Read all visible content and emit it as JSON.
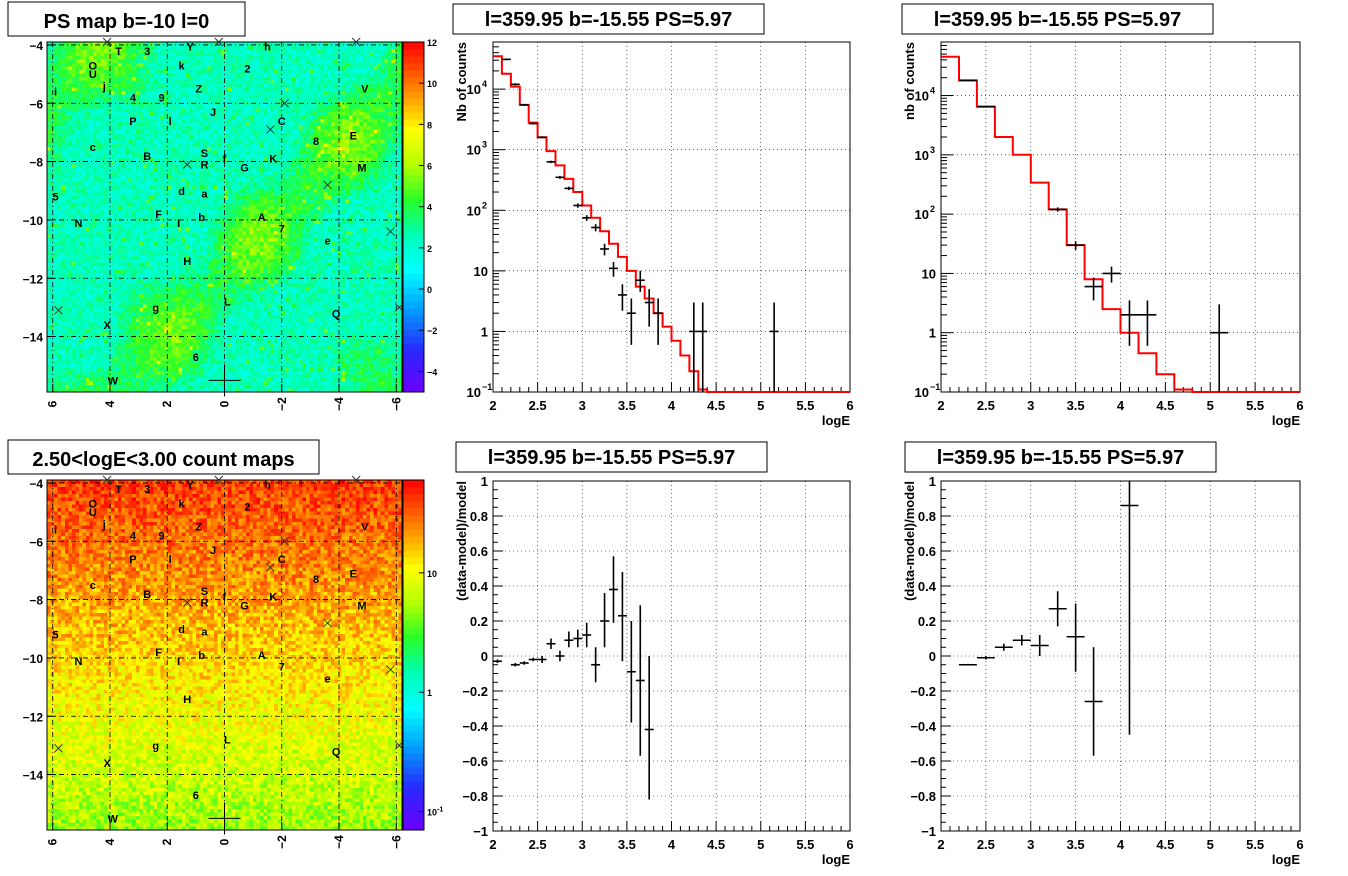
{
  "chart_data": [
    {
      "type": "heatmap",
      "title": "PS map b=-10 l=0",
      "xlim": [
        6.2,
        -6.2
      ],
      "ylim": [
        -15.9,
        -3.9
      ],
      "xticks": [
        6,
        4,
        2,
        0,
        -2,
        -4,
        -6
      ],
      "yticks": [
        -4,
        -6,
        -8,
        -10,
        -12,
        -14
      ],
      "colorbar": {
        "min": -5,
        "max": 12,
        "ticks": [
          12,
          10,
          8,
          6,
          4,
          2,
          0,
          -2,
          -4
        ],
        "scale": "linear"
      },
      "field_level": "cyan (~0-2) with green patches (~3-5)",
      "grid": true,
      "source_labels": [
        {
          "t": "T",
          "l": 3.7,
          "b": -4.2
        },
        {
          "t": "3",
          "l": 2.7,
          "b": -4.2
        },
        {
          "t": "Y",
          "l": 1.2,
          "b": -4.05
        },
        {
          "t": "h",
          "l": -1.5,
          "b": -4.05
        },
        {
          "t": "O",
          "l": 4.6,
          "b": -4.7
        },
        {
          "t": "U",
          "l": 4.6,
          "b": -5.0
        },
        {
          "t": "k",
          "l": 1.5,
          "b": -4.7
        },
        {
          "t": "2",
          "l": -0.8,
          "b": -4.8
        },
        {
          "t": "i",
          "l": 5.9,
          "b": -5.6
        },
        {
          "t": "j",
          "l": 4.2,
          "b": -5.4
        },
        {
          "t": "4",
          "l": 3.2,
          "b": -5.8
        },
        {
          "t": "9",
          "l": 2.2,
          "b": -5.8
        },
        {
          "t": "Z",
          "l": 0.9,
          "b": -5.5
        },
        {
          "t": "V",
          "l": -4.9,
          "b": -5.5
        },
        {
          "t": "l",
          "l": 1.9,
          "b": -6.6
        },
        {
          "t": "P",
          "l": 3.2,
          "b": -6.6
        },
        {
          "t": "J",
          "l": 0.4,
          "b": -6.3
        },
        {
          "t": "C",
          "l": -2.0,
          "b": -6.6
        },
        {
          "t": "c",
          "l": 4.6,
          "b": -7.5
        },
        {
          "t": "8",
          "l": -3.2,
          "b": -7.3
        },
        {
          "t": "E",
          "l": -4.5,
          "b": -7.1
        },
        {
          "t": "B",
          "l": 2.7,
          "b": -7.8
        },
        {
          "t": "S",
          "l": 0.7,
          "b": -7.7
        },
        {
          "t": "f",
          "l": 0.0,
          "b": -7.9
        },
        {
          "t": "K",
          "l": -1.7,
          "b": -7.9
        },
        {
          "t": "R",
          "l": 0.7,
          "b": -8.1
        },
        {
          "t": "G",
          "l": -0.7,
          "b": -8.2
        },
        {
          "t": "M",
          "l": -4.8,
          "b": -8.2
        },
        {
          "t": "d",
          "l": 1.5,
          "b": -9.0
        },
        {
          "t": "a",
          "l": 0.7,
          "b": -9.1
        },
        {
          "t": "5",
          "l": 5.9,
          "b": -9.2
        },
        {
          "t": "F",
          "l": 2.3,
          "b": -9.8
        },
        {
          "t": "b",
          "l": 0.8,
          "b": -9.9
        },
        {
          "t": "I",
          "l": 1.6,
          "b": -10.1
        },
        {
          "t": "A",
          "l": -1.3,
          "b": -9.9
        },
        {
          "t": "N",
          "l": 5.1,
          "b": -10.1
        },
        {
          "t": "7",
          "l": -2.0,
          "b": -10.3
        },
        {
          "t": "e",
          "l": -3.6,
          "b": -10.7
        },
        {
          "t": "H",
          "l": 1.3,
          "b": -11.4
        },
        {
          "t": "L",
          "l": -0.1,
          "b": -12.8
        },
        {
          "t": "g",
          "l": 2.4,
          "b": -13.0
        },
        {
          "t": "Q",
          "l": -3.9,
          "b": -13.2
        },
        {
          "t": "X",
          "l": 4.1,
          "b": -13.6
        },
        {
          "t": "6",
          "l": 1.0,
          "b": -14.7
        },
        {
          "t": "W",
          "l": 3.9,
          "b": -15.5
        }
      ],
      "cross_markers": [
        {
          "l": 4.1,
          "b": -3.9
        },
        {
          "l": 0.2,
          "b": -3.9
        },
        {
          "l": -4.6,
          "b": -3.9
        },
        {
          "l": -2.1,
          "b": -6.0
        },
        {
          "l": -1.6,
          "b": -6.9
        },
        {
          "l": 1.3,
          "b": -8.1
        },
        {
          "l": -3.6,
          "b": -8.8
        },
        {
          "l": -5.8,
          "b": -10.4
        },
        {
          "l": 5.8,
          "b": -13.1
        },
        {
          "l": -6.1,
          "b": -13.0
        }
      ],
      "crosshair": {
        "l": 0.0,
        "b": -15.5
      }
    },
    {
      "type": "line",
      "title": "l=359.95 b=-15.55 PS=5.97",
      "xlabel": "logE",
      "ylabel": "Nb of counts",
      "xlim": [
        2,
        6
      ],
      "ylim": [
        0.1,
        60000
      ],
      "yscale": "log",
      "xticks": [
        2,
        2.5,
        3,
        3.5,
        4,
        4.5,
        5,
        5.5,
        6
      ],
      "yticks": [
        {
          "v": 0.1,
          "t": "10"
        },
        {
          "v": 1,
          "t": "1"
        },
        {
          "v": 10,
          "t": "10"
        },
        {
          "v": 100,
          "t": "10"
        },
        {
          "v": 1000,
          "t": "10"
        },
        {
          "v": 10000,
          "t": "10"
        }
      ],
      "grid": true,
      "model_color": "#ff0000",
      "model_edges": [
        2,
        2.1,
        2.2,
        2.3,
        2.4,
        2.5,
        2.6,
        2.7,
        2.8,
        2.9,
        3.0,
        3.1,
        3.2,
        3.3,
        3.4,
        3.5,
        3.6,
        3.7,
        3.8,
        3.9,
        4.0,
        4.1,
        4.2,
        4.3,
        4.4,
        4.5,
        4.6,
        4.7,
        4.8,
        4.9,
        5.0,
        5.1,
        5.2,
        5.3,
        5.4,
        5.5,
        5.6,
        5.7,
        5.8,
        5.9,
        6.0
      ],
      "model_values": [
        35000,
        18000,
        11000,
        5500,
        2800,
        1600,
        950,
        550,
        330,
        200,
        120,
        75,
        45,
        28,
        17,
        10,
        5.5,
        3.5,
        2.0,
        1.2,
        0.7,
        0.4,
        0.22,
        0.11,
        0.1,
        0.1,
        0.1,
        0.1,
        0.1,
        0.1,
        0.1,
        0.1,
        0.1,
        0.1,
        0.1,
        0.1,
        0.1,
        0.1,
        0.1,
        0.1
      ],
      "points": [
        {
          "x": 2.15,
          "y": 31000,
          "dx": 0.05,
          "lo": 30000,
          "hi": 32000
        },
        {
          "x": 2.25,
          "y": 12000,
          "dx": 0.05,
          "lo": 11500,
          "hi": 12500
        },
        {
          "x": 2.35,
          "y": 5500,
          "dx": 0.05,
          "lo": 5300,
          "hi": 5700
        },
        {
          "x": 2.45,
          "y": 2700,
          "dx": 0.05,
          "lo": 2600,
          "hi": 2800
        },
        {
          "x": 2.55,
          "y": 1600,
          "dx": 0.05,
          "lo": 1550,
          "hi": 1650
        },
        {
          "x": 2.65,
          "y": 630,
          "dx": 0.05,
          "lo": 600,
          "hi": 660
        },
        {
          "x": 2.75,
          "y": 350,
          "dx": 0.05,
          "lo": 330,
          "hi": 370
        },
        {
          "x": 2.85,
          "y": 230,
          "dx": 0.05,
          "lo": 215,
          "hi": 245
        },
        {
          "x": 2.95,
          "y": 120,
          "dx": 0.05,
          "lo": 110,
          "hi": 130
        },
        {
          "x": 3.05,
          "y": 75,
          "dx": 0.05,
          "lo": 67,
          "hi": 83
        },
        {
          "x": 3.15,
          "y": 52,
          "dx": 0.05,
          "lo": 45,
          "hi": 59
        },
        {
          "x": 3.25,
          "y": 23,
          "dx": 0.05,
          "lo": 18,
          "hi": 28
        },
        {
          "x": 3.35,
          "y": 11,
          "dx": 0.05,
          "lo": 8,
          "hi": 14
        },
        {
          "x": 3.45,
          "y": 4,
          "dx": 0.05,
          "lo": 2.2,
          "hi": 6
        },
        {
          "x": 3.55,
          "y": 2,
          "dx": 0.05,
          "lo": 0.6,
          "hi": 3.5
        },
        {
          "x": 3.65,
          "y": 7,
          "dx": 0.05,
          "lo": 4.5,
          "hi": 10
        },
        {
          "x": 3.75,
          "y": 3,
          "dx": 0.05,
          "lo": 1.2,
          "hi": 5
        },
        {
          "x": 3.85,
          "y": 2,
          "dx": 0.05,
          "lo": 0.6,
          "hi": 3.5
        },
        {
          "x": 4.25,
          "y": 1,
          "dx": 0.05,
          "lo": 0.1,
          "hi": 3
        },
        {
          "x": 4.35,
          "y": 1,
          "dx": 0.05,
          "lo": 0.1,
          "hi": 3
        },
        {
          "x": 5.15,
          "y": 1,
          "dx": 0.05,
          "lo": 0.1,
          "hi": 3
        }
      ]
    },
    {
      "type": "line",
      "title": "l=359.95 b=-15.55 PS=5.97",
      "xlabel": "logE",
      "ylabel": "nb of counts",
      "xlim": [
        2,
        6
      ],
      "ylim": [
        0.1,
        80000
      ],
      "yscale": "log",
      "xticks": [
        2,
        2.5,
        3,
        3.5,
        4,
        4.5,
        5,
        5.5,
        6
      ],
      "yticks": [
        {
          "v": 0.1,
          "t": "10"
        },
        {
          "v": 1,
          "t": "1"
        },
        {
          "v": 10,
          "t": "10"
        },
        {
          "v": 100,
          "t": "10"
        },
        {
          "v": 1000,
          "t": "10"
        },
        {
          "v": 10000,
          "t": "10"
        }
      ],
      "grid": true,
      "model_color": "#ff0000",
      "model_edges": [
        2,
        2.2,
        2.4,
        2.6,
        2.8,
        3.0,
        3.2,
        3.4,
        3.6,
        3.8,
        4.0,
        4.2,
        4.4,
        4.6,
        4.8,
        5.0,
        5.2,
        5.4,
        5.6,
        5.8,
        6.0
      ],
      "model_values": [
        45000,
        18000,
        6500,
        2000,
        1000,
        340,
        120,
        30,
        8,
        2.5,
        1.0,
        0.45,
        0.2,
        0.11,
        0.1,
        0.1,
        0.1,
        0.1,
        0.1,
        0.1
      ],
      "points": [
        {
          "x": 2.3,
          "y": 18000,
          "dx": 0.1,
          "lo": 17500,
          "hi": 18500
        },
        {
          "x": 2.5,
          "y": 6500,
          "dx": 0.1,
          "lo": 6300,
          "hi": 6700
        },
        {
          "x": 3.3,
          "y": 120,
          "dx": 0.1,
          "lo": 110,
          "hi": 130
        },
        {
          "x": 3.5,
          "y": 30,
          "dx": 0.1,
          "lo": 25,
          "hi": 35
        },
        {
          "x": 3.7,
          "y": 6,
          "dx": 0.1,
          "lo": 3.5,
          "hi": 8.5
        },
        {
          "x": 3.9,
          "y": 10,
          "dx": 0.1,
          "lo": 7,
          "hi": 13
        },
        {
          "x": 4.1,
          "y": 2,
          "dx": 0.1,
          "lo": 0.6,
          "hi": 3.5
        },
        {
          "x": 4.3,
          "y": 2,
          "dx": 0.1,
          "lo": 0.6,
          "hi": 3.5
        },
        {
          "x": 5.1,
          "y": 1,
          "dx": 0.1,
          "lo": 0.1,
          "hi": 3
        }
      ]
    },
    {
      "type": "heatmap",
      "title": "2.50<logE<3.00 count maps",
      "xlim": [
        6.2,
        -6.2
      ],
      "ylim": [
        -15.9,
        -3.9
      ],
      "xticks": [
        6,
        4,
        2,
        0,
        -2,
        -4,
        -6
      ],
      "yticks": [
        -4,
        -6,
        -8,
        -10,
        -12,
        -14
      ],
      "colorbar": {
        "min": 0.07,
        "max": 60,
        "scale": "log",
        "ticks": [
          {
            "v": 10,
            "t": "10"
          },
          {
            "v": 1,
            "t": "1"
          },
          {
            "v": 0.1,
            "t": "10"
          }
        ]
      },
      "field_level": "red (~20-40) at top, orange mid, yellow (~3-6) at bottom",
      "grid": true,
      "source_labels": "same as PS map",
      "cross_markers": "same as PS map",
      "crosshair": {
        "l": 0.0,
        "b": -15.5
      }
    },
    {
      "type": "scatter",
      "title": "l=359.95 b=-15.55 PS=5.97",
      "xlabel": "logE",
      "ylabel": "(data-model)/model",
      "xlim": [
        2,
        6
      ],
      "ylim": [
        -1,
        1
      ],
      "xticks": [
        2,
        2.5,
        3,
        3.5,
        4,
        4.5,
        5,
        5.5,
        6
      ],
      "yticks": [
        -1,
        -0.8,
        -0.6,
        -0.4,
        -0.2,
        0,
        0.2,
        0.4,
        0.6,
        0.8,
        1
      ],
      "grid": true,
      "points": [
        {
          "x": 2.05,
          "y": -0.03,
          "dx": 0.05,
          "lo": -0.04,
          "hi": -0.02
        },
        {
          "x": 2.25,
          "y": -0.05,
          "dx": 0.05,
          "lo": -0.06,
          "hi": -0.04
        },
        {
          "x": 2.35,
          "y": -0.04,
          "dx": 0.05,
          "lo": -0.05,
          "hi": -0.03
        },
        {
          "x": 2.45,
          "y": -0.02,
          "dx": 0.05,
          "lo": -0.03,
          "hi": -0.01
        },
        {
          "x": 2.55,
          "y": -0.02,
          "dx": 0.05,
          "lo": -0.04,
          "hi": 0.0
        },
        {
          "x": 2.65,
          "y": 0.07,
          "dx": 0.05,
          "lo": 0.04,
          "hi": 0.1
        },
        {
          "x": 2.75,
          "y": 0.0,
          "dx": 0.05,
          "lo": -0.03,
          "hi": 0.03
        },
        {
          "x": 2.85,
          "y": 0.09,
          "dx": 0.05,
          "lo": 0.05,
          "hi": 0.14
        },
        {
          "x": 2.95,
          "y": 0.1,
          "dx": 0.05,
          "lo": 0.05,
          "hi": 0.15
        },
        {
          "x": 3.05,
          "y": 0.12,
          "dx": 0.05,
          "lo": 0.05,
          "hi": 0.19
        },
        {
          "x": 3.15,
          "y": -0.05,
          "dx": 0.05,
          "lo": -0.15,
          "hi": 0.05
        },
        {
          "x": 3.25,
          "y": 0.2,
          "dx": 0.05,
          "lo": 0.05,
          "hi": 0.36
        },
        {
          "x": 3.35,
          "y": 0.38,
          "dx": 0.05,
          "lo": 0.19,
          "hi": 0.57
        },
        {
          "x": 3.45,
          "y": 0.23,
          "dx": 0.05,
          "lo": -0.03,
          "hi": 0.48
        },
        {
          "x": 3.55,
          "y": -0.09,
          "dx": 0.05,
          "lo": -0.38,
          "hi": 0.2
        },
        {
          "x": 3.65,
          "y": -0.14,
          "dx": 0.05,
          "lo": -0.57,
          "hi": 0.29
        },
        {
          "x": 3.75,
          "y": -0.42,
          "dx": 0.05,
          "lo": -0.82,
          "hi": 0.0
        }
      ]
    },
    {
      "type": "scatter",
      "title": "l=359.95 b=-15.55 PS=5.97",
      "xlabel": "logE",
      "ylabel": "(data-model)/model",
      "xlim": [
        2,
        6
      ],
      "ylim": [
        -1,
        1
      ],
      "xticks": [
        2,
        2.5,
        3,
        3.5,
        4,
        4.5,
        5,
        5.5,
        6
      ],
      "yticks": [
        -1,
        -0.8,
        -0.6,
        -0.4,
        -0.2,
        0,
        0.2,
        0.4,
        0.6,
        0.8,
        1
      ],
      "grid": true,
      "points": [
        {
          "x": 2.3,
          "y": -0.05,
          "dx": 0.1,
          "lo": -0.055,
          "hi": -0.045
        },
        {
          "x": 2.5,
          "y": -0.01,
          "dx": 0.1,
          "lo": -0.02,
          "hi": 0.0
        },
        {
          "x": 2.7,
          "y": 0.05,
          "dx": 0.1,
          "lo": 0.03,
          "hi": 0.07
        },
        {
          "x": 2.9,
          "y": 0.09,
          "dx": 0.1,
          "lo": 0.06,
          "hi": 0.12
        },
        {
          "x": 3.1,
          "y": 0.06,
          "dx": 0.1,
          "lo": 0.0,
          "hi": 0.12
        },
        {
          "x": 3.3,
          "y": 0.27,
          "dx": 0.1,
          "lo": 0.17,
          "hi": 0.37
        },
        {
          "x": 3.5,
          "y": 0.11,
          "dx": 0.1,
          "lo": -0.09,
          "hi": 0.3
        },
        {
          "x": 3.7,
          "y": -0.26,
          "dx": 0.1,
          "lo": -0.57,
          "hi": 0.05
        },
        {
          "x": 4.1,
          "y": 0.86,
          "dx": 0.1,
          "lo": -0.45,
          "hi": 1.0
        }
      ]
    }
  ]
}
